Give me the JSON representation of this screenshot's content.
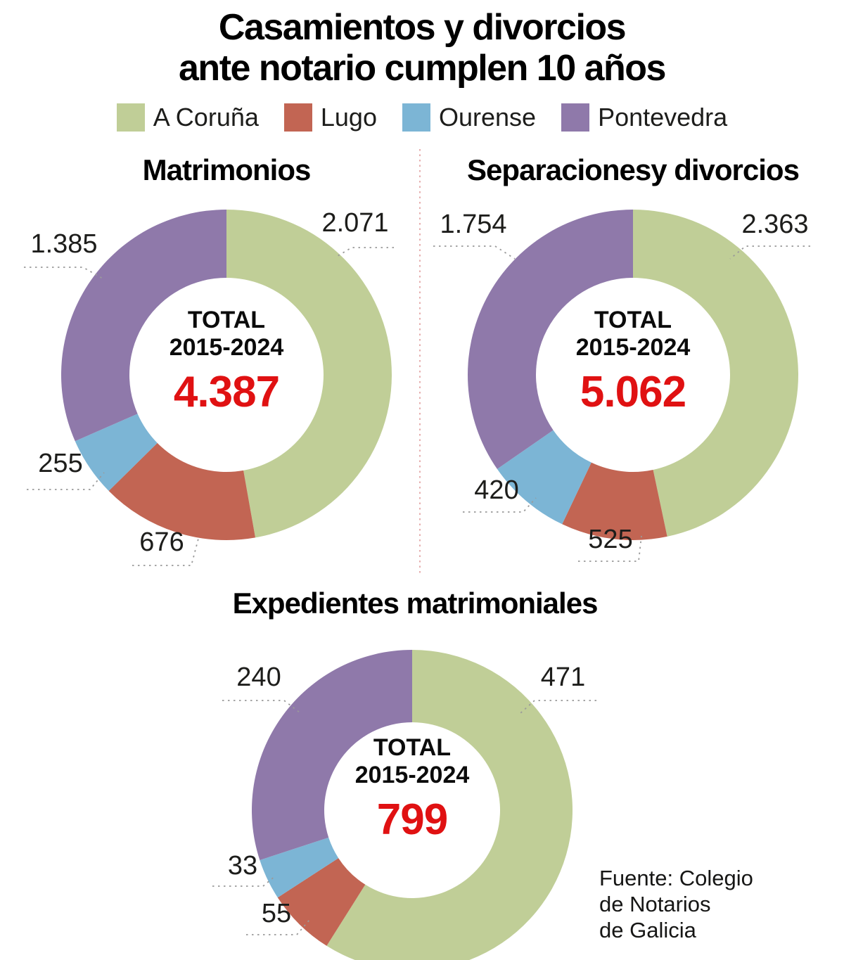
{
  "title": {
    "line1": "Casamientos y divorcios",
    "line2": "ante notario cumplen 10 años"
  },
  "legend": [
    {
      "label": "A Coruña",
      "color": "#c0ce97"
    },
    {
      "label": "Lugo",
      "color": "#c26553"
    },
    {
      "label": "Ourense",
      "color": "#7cb5d5"
    },
    {
      "label": "Pontevedra",
      "color": "#8f79aa"
    }
  ],
  "colors": {
    "accent_red": "#e01112",
    "leader_line": "#9a9a9a",
    "divider": "#e09a9a",
    "text": "#1d1d1b"
  },
  "center_label": {
    "line1": "TOTAL",
    "line2": "2015-2024"
  },
  "source": {
    "line1": "Fuente: Colegio",
    "line2": "de Notarios",
    "line3": "de Galicia"
  },
  "chart_data": [
    {
      "type": "pie",
      "donut": true,
      "title": "Matrimonios",
      "categories": [
        "A Coruña",
        "Lugo",
        "Ourense",
        "Pontevedra"
      ],
      "values": [
        2071,
        676,
        255,
        1385
      ],
      "value_labels": [
        "2.071",
        "676",
        "255",
        "1.385"
      ],
      "colors": [
        "#c0ce97",
        "#c26553",
        "#7cb5d5",
        "#8f79aa"
      ],
      "total": 4387,
      "total_label": "4.387",
      "start_angle_deg": 0,
      "direction": "clockwise",
      "legend_position": "top"
    },
    {
      "type": "pie",
      "donut": true,
      "title": "Separacionesy divorcios",
      "categories": [
        "A Coruña",
        "Lugo",
        "Ourense",
        "Pontevedra"
      ],
      "values": [
        2363,
        525,
        420,
        1754
      ],
      "value_labels": [
        "2.363",
        "525",
        "420",
        "1.754"
      ],
      "colors": [
        "#c0ce97",
        "#c26553",
        "#7cb5d5",
        "#8f79aa"
      ],
      "total": 5062,
      "total_label": "5.062",
      "start_angle_deg": 0,
      "direction": "clockwise",
      "legend_position": "top"
    },
    {
      "type": "pie",
      "donut": true,
      "title": "Expedientes matrimoniales",
      "categories": [
        "A Coruña",
        "Lugo",
        "Ourense",
        "Pontevedra"
      ],
      "values": [
        471,
        55,
        33,
        240
      ],
      "value_labels": [
        "471",
        "55",
        "33",
        "240"
      ],
      "colors": [
        "#c0ce97",
        "#c26553",
        "#7cb5d5",
        "#8f79aa"
      ],
      "total": 799,
      "total_label": "799",
      "start_angle_deg": 0,
      "direction": "clockwise",
      "legend_position": "top"
    }
  ]
}
